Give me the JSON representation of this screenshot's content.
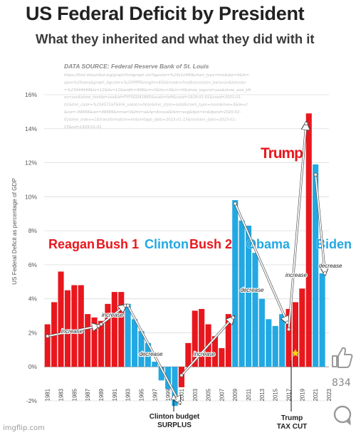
{
  "title": "US Federal Deficit by President",
  "subtitle": "What they inherited and what they did with it",
  "source": {
    "heading": "DATA SOURCE: Federal Reserve Bank of St. Louis",
    "url_lines": [
      "https://fred.stlouisfed.org/graph/fredgraph.xls?bgcolor=%23e1e9f0&chart_type=line&drp=0&fo=",
      "open%20sans&graph_bgcolor=%23ffffff&height=450&mode=fred&recession_bars=on&txtcolor",
      "=%23444444&ts=12&tts=12&width=968&nt=0&thu=0&trc=0&show_legend=yes&show_axis_titl",
      "es=yes&show_tooltip=yes&id=FYFSGDA188S&scale=left&cosd=1929-01-01&coed=2021-01-",
      "01&line_color=%234572a7&link_values=false&line_style=solid&mark_type=none&mw=3&lw=2",
      "&ost=-99999&oet=99999&mma=0&fml=a&fq=Annual&fam=avg&fgst=lin&fgsnd=2020-02-",
      "01&line_index=1&transformation=lin&vintage_date=2023-01-15&revision_date=2023-01-",
      "15&nd=1929-01-01"
    ]
  },
  "chart_data": {
    "type": "bar",
    "ylabel": "US Federal Deficit as percentage of GDP",
    "ylim": [
      -2,
      16
    ],
    "yticks": [
      "16%",
      "14%",
      "12%",
      "10%",
      "8%",
      "6%",
      "4%",
      "2%",
      "0%",
      "-2%"
    ],
    "grid": true,
    "x": [
      1981,
      1982,
      1983,
      1984,
      1985,
      1986,
      1987,
      1988,
      1989,
      1990,
      1991,
      1992,
      1993,
      1994,
      1995,
      1996,
      1997,
      1998,
      1999,
      2000,
      2001,
      2002,
      2003,
      2004,
      2005,
      2006,
      2007,
      2008,
      2009,
      2010,
      2011,
      2012,
      2013,
      2014,
      2015,
      2016,
      2017,
      2018,
      2019,
      2020,
      2021,
      2022
    ],
    "xtick_labels": [
      "1981",
      "1983",
      "1985",
      "1987",
      "1989",
      "1991",
      "1993",
      "1995",
      "1997",
      "1999",
      "2001",
      "2003",
      "2005",
      "2007",
      "2009",
      "2011",
      "2013",
      "2015",
      "2017",
      "2019",
      "2021",
      "2023"
    ],
    "values": [
      2.5,
      3.8,
      5.6,
      4.5,
      4.8,
      4.8,
      3.1,
      2.9,
      2.7,
      3.7,
      4.4,
      4.4,
      3.7,
      2.8,
      2.1,
      1.4,
      0.3,
      -0.8,
      -1.3,
      -2.3,
      -1.2,
      1.4,
      3.3,
      3.4,
      2.5,
      1.8,
      1.1,
      3.1,
      9.8,
      8.6,
      8.3,
      6.7,
      4.0,
      2.8,
      2.4,
      3.1,
      3.4,
      3.8,
      4.6,
      14.9,
      11.9,
      5.5
    ],
    "party_colors": {
      "R": "#e8171d",
      "D": "#22a8e2"
    },
    "bar_party": [
      "R",
      "R",
      "R",
      "R",
      "R",
      "R",
      "R",
      "R",
      "R",
      "R",
      "R",
      "R",
      "D",
      "D",
      "D",
      "D",
      "D",
      "D",
      "D",
      "D",
      "R",
      "R",
      "R",
      "R",
      "R",
      "R",
      "R",
      "R",
      "D",
      "D",
      "D",
      "D",
      "D",
      "D",
      "D",
      "D",
      "R",
      "R",
      "R",
      "R",
      "D",
      "D"
    ],
    "presidents": [
      {
        "name": "Reagan",
        "color": "#e8171d"
      },
      {
        "name": "Bush 1",
        "color": "#e8171d"
      },
      {
        "name": "Clinton",
        "color": "#22a8e2"
      },
      {
        "name": "Bush 2",
        "color": "#e8171d"
      },
      {
        "name": "Obama",
        "color": "#22a8e2"
      },
      {
        "name": "Trump",
        "color": "#e8171d"
      },
      {
        "name": "Biden",
        "color": "#22a8e2"
      }
    ],
    "annotations": {
      "increase": "increase",
      "decrease": "decrease",
      "clinton_surplus": [
        "Clinton budget",
        "SURPLUS"
      ],
      "trump_tax_cut": [
        "Trump",
        "TAX CUT"
      ]
    }
  },
  "social": {
    "like_count": "834",
    "watermark": "imgflip.com"
  },
  "icons": {
    "like": "thumbs-up-icon",
    "comment": "comment-icon",
    "star": "star-icon"
  }
}
